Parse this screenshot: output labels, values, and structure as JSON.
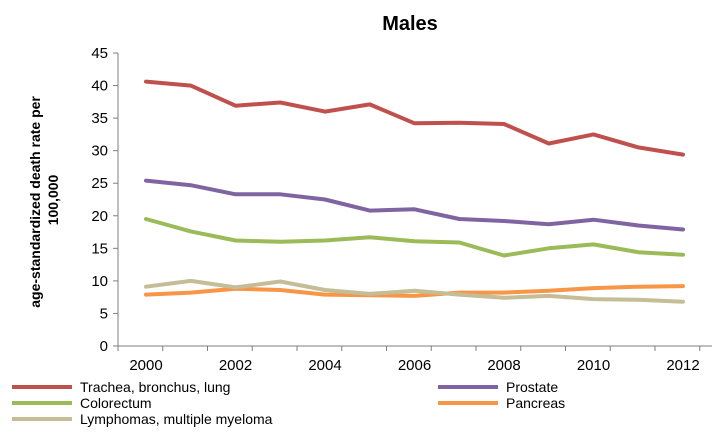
{
  "chart_data": {
    "type": "line",
    "title": "Males",
    "xlabel": "",
    "ylabel_lines": [
      "age-standardized death rate per",
      "100,000"
    ],
    "x": [
      2000,
      2001,
      2002,
      2003,
      2004,
      2005,
      2006,
      2007,
      2008,
      2009,
      2010,
      2011,
      2012
    ],
    "xticks": [
      "2000",
      "2002",
      "2004",
      "2006",
      "2008",
      "2010",
      "2012"
    ],
    "xtick_values": [
      2000,
      2002,
      2004,
      2006,
      2008,
      2010,
      2012
    ],
    "ylim": [
      0,
      45
    ],
    "yticks": [
      "0",
      "5",
      "10",
      "15",
      "20",
      "25",
      "30",
      "35",
      "40",
      "45"
    ],
    "ytick_values": [
      0,
      5,
      10,
      15,
      20,
      25,
      30,
      35,
      40,
      45
    ],
    "grid": false,
    "legend_position": "bottom",
    "series": [
      {
        "name": "Trachea, bronchus, lung",
        "color": "#c0504d",
        "values": [
          40.6,
          40.0,
          36.9,
          37.4,
          36.0,
          37.1,
          34.2,
          34.3,
          34.1,
          31.1,
          32.5,
          30.5,
          29.4
        ]
      },
      {
        "name": "Prostate",
        "color": "#8064a2",
        "values": [
          25.4,
          24.7,
          23.3,
          23.3,
          22.5,
          20.8,
          21.0,
          19.5,
          19.2,
          18.7,
          19.4,
          18.5,
          17.9
        ]
      },
      {
        "name": "Colorectum",
        "color": "#9bbb59",
        "values": [
          19.5,
          17.6,
          16.2,
          16.0,
          16.2,
          16.7,
          16.1,
          15.9,
          13.9,
          15.0,
          15.6,
          14.4,
          14.0
        ]
      },
      {
        "name": "Pancreas",
        "color": "#f79646",
        "values": [
          7.9,
          8.2,
          8.8,
          8.6,
          7.9,
          7.8,
          7.7,
          8.2,
          8.2,
          8.5,
          8.9,
          9.1,
          9.2
        ]
      },
      {
        "name": "Lymphomas, multiple myeloma",
        "color": "#c4bd97",
        "values": [
          9.1,
          10.0,
          9.0,
          9.9,
          8.6,
          8.0,
          8.5,
          7.9,
          7.4,
          7.7,
          7.2,
          7.1,
          6.8
        ]
      }
    ]
  }
}
